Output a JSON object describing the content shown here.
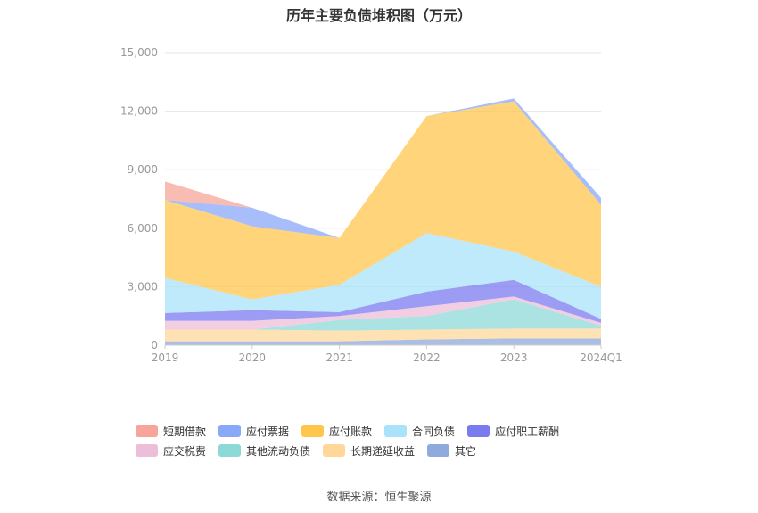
{
  "chart_data": {
    "type": "area",
    "title": "历年主要负债堆积图（万元）",
    "categories": [
      "2019",
      "2020",
      "2021",
      "2022",
      "2023",
      "2024Q1"
    ],
    "ylim": [
      0,
      15000
    ],
    "yticks": [
      "0",
      "3,000",
      "6,000",
      "9,000",
      "12,000",
      "15,000"
    ],
    "grid": true,
    "legend_position": "bottom",
    "series": [
      {
        "name": "其它",
        "color": "#8faadc",
        "values": [
          200,
          200,
          200,
          300,
          350,
          350
        ]
      },
      {
        "name": "长期递延收益",
        "color": "#ffd899",
        "values": [
          600,
          600,
          550,
          500,
          500,
          500
        ]
      },
      {
        "name": "其他流动负债",
        "color": "#8dd9d7",
        "values": [
          0,
          0,
          550,
          700,
          1500,
          150
        ]
      },
      {
        "name": "应交税费",
        "color": "#edbed9",
        "values": [
          450,
          450,
          200,
          500,
          150,
          150
        ]
      },
      {
        "name": "应付职工薪酬",
        "color": "#7b7bf0",
        "values": [
          400,
          550,
          200,
          750,
          850,
          200
        ]
      },
      {
        "name": "合同负债",
        "color": "#a9e3fb",
        "values": [
          1800,
          550,
          1400,
          3000,
          1450,
          1650
        ]
      },
      {
        "name": "应付账款",
        "color": "#ffc64d",
        "values": [
          4000,
          3750,
          2400,
          6000,
          7700,
          4200
        ]
      },
      {
        "name": "应付票据",
        "color": "#8aa8f8",
        "values": [
          0,
          950,
          0,
          0,
          150,
          350
        ]
      },
      {
        "name": "短期借款",
        "color": "#f7a59a",
        "values": [
          950,
          0,
          0,
          0,
          0,
          0
        ]
      }
    ]
  },
  "source": "数据来源：恒生聚源"
}
